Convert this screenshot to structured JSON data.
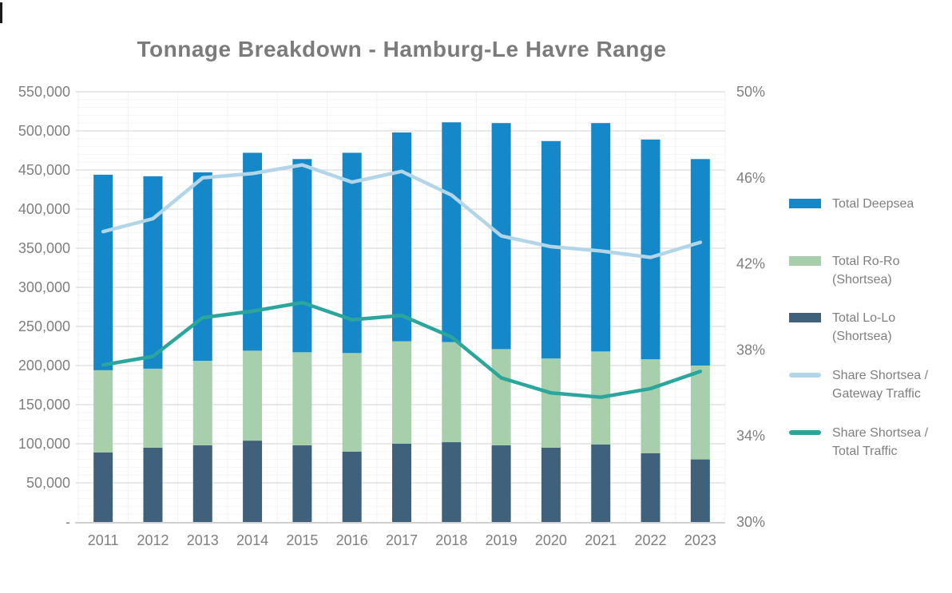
{
  "title": "Tonnage Breakdown - Hamburg-Le Havre Range",
  "colors": {
    "deepsea": "#1588c9",
    "roro": "#a8cfab",
    "lolo": "#3f617b",
    "gateway_line": "#b2d5e7",
    "total_line": "#2ba69c",
    "major_grid": "#dcdcdc",
    "minor_grid": "#f5f5f5",
    "vert_grid": "#f2f2f2",
    "axis_line": "#d0d0d0",
    "label_gray": "#7f7f7f",
    "title_gray": "#7b7b7b"
  },
  "chart_data": {
    "type": "bar-line-combo",
    "title": "Tonnage Breakdown - Hamburg-Le Havre Range",
    "categories": [
      "2011",
      "2012",
      "2013",
      "2014",
      "2015",
      "2016",
      "2017",
      "2018",
      "2019",
      "2020",
      "2021",
      "2022",
      "2023"
    ],
    "bar_series": [
      {
        "name": "Total Lo-Lo (Shortsea)",
        "color": "#3f617b",
        "values": [
          89000,
          95000,
          98000,
          104000,
          98000,
          90000,
          100000,
          102000,
          98000,
          95000,
          99000,
          88000,
          80000
        ]
      },
      {
        "name": "Total Ro-Ro (Shortsea)",
        "color": "#a8cfab",
        "values": [
          105000,
          101000,
          108000,
          115000,
          119000,
          126000,
          131000,
          128000,
          123000,
          114000,
          119000,
          120000,
          120000
        ]
      },
      {
        "name": "Total Deepsea",
        "color": "#1588c9",
        "values": [
          250000,
          246000,
          241000,
          253000,
          247000,
          256000,
          267000,
          281000,
          289000,
          278000,
          292000,
          281000,
          264000
        ]
      }
    ],
    "bar_totals": [
      444000,
      442000,
      447000,
      472000,
      464000,
      472000,
      498000,
      511000,
      510000,
      487000,
      510000,
      489000,
      464000
    ],
    "line_series": [
      {
        "name": "Share Shortsea / Gateway Traffic",
        "color": "#b2d5e7",
        "axis": "right",
        "values": [
          43.5,
          44.1,
          46.0,
          46.2,
          46.6,
          45.8,
          46.3,
          45.2,
          43.3,
          42.8,
          42.6,
          42.3,
          43.0
        ]
      },
      {
        "name": "Share Shortsea / Total Traffic",
        "color": "#2ba69c",
        "axis": "right",
        "values": [
          37.3,
          37.7,
          39.5,
          39.8,
          40.2,
          39.4,
          39.6,
          38.6,
          36.7,
          36.0,
          35.8,
          36.2,
          37.0
        ]
      }
    ],
    "left_axis": {
      "min": 0,
      "max": 550000,
      "major_step": 50000,
      "minor_step": 10000,
      "labels": [
        "550,000",
        "500,000",
        "450,000",
        "400,000",
        "350,000",
        "300,000",
        "250,000",
        "200,000",
        "150,000",
        "100,000",
        "50,000",
        "-"
      ]
    },
    "right_axis": {
      "min": 30,
      "max": 50,
      "step": 4,
      "labels": [
        "50%",
        "46%",
        "42%",
        "38%",
        "34%",
        "30%"
      ]
    },
    "grid": true,
    "legend_position": "right",
    "legend": [
      {
        "label": "Total Deepsea",
        "label_lines": [
          "Total Deepsea"
        ],
        "swatch": "bar",
        "color": "#1588c9"
      },
      {
        "label": "Total Ro-Ro (Shortsea)",
        "label_lines": [
          "Total Ro-Ro",
          "(Shortsea)"
        ],
        "swatch": "bar",
        "color": "#a8cfab"
      },
      {
        "label": "Total Lo-Lo (Shortsea)",
        "label_lines": [
          "Total Lo-Lo",
          "(Shortsea)"
        ],
        "swatch": "bar",
        "color": "#3f617b"
      },
      {
        "label": "Share Shortsea / Gateway Traffic",
        "label_lines": [
          "Share Shortsea /",
          "Gateway Traffic"
        ],
        "swatch": "line",
        "color": "#b2d5e7"
      },
      {
        "label": "Share Shortsea / Total Traffic",
        "label_lines": [
          "Share Shortsea /",
          "Total Traffic"
        ],
        "swatch": "line",
        "color": "#2ba69c"
      }
    ]
  }
}
